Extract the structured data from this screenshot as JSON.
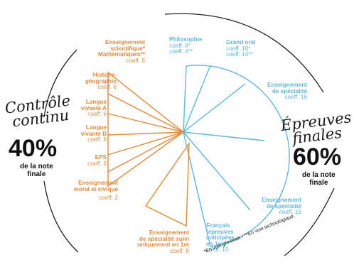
{
  "left": {
    "title_line1": "Contrôle",
    "title_line2": "continu",
    "percent": "40%",
    "note_line1": "de la note",
    "note_line2": "finale"
  },
  "right": {
    "title_line1": "Épreuves",
    "title_line2": "finales",
    "percent": "60%",
    "note_line1": "de la note",
    "note_line2": "finale"
  },
  "segments": {
    "ens_sci": {
      "lines": [
        "Enseignement",
        "scientifique*",
        "Mathématiques**"
      ],
      "coeff": "coeff. 6"
    },
    "histoire": {
      "lines": [
        "Histoire-",
        "géographie"
      ],
      "coeff": "coeff. 6"
    },
    "langue_a": {
      "lines": [
        "Langue",
        "vivante A"
      ],
      "coeff": "coeff. 6"
    },
    "langue_b": {
      "lines": [
        "Langue",
        "vivante B"
      ],
      "coeff": "coeff. 6"
    },
    "eps": {
      "lines": [
        "EPS"
      ],
      "coeff": "coeff. 6"
    },
    "moral": {
      "lines": [
        "Enseignement",
        "moral et civique"
      ],
      "coeff": "coeff. 2"
    },
    "specialite_1re": {
      "lines": [
        "Enseignement",
        "de spécialité suivi",
        "uniquement en 1re"
      ],
      "coeff": "coeff. 8"
    },
    "philo": {
      "lines": [
        "Philosophie",
        "coeff. 8*",
        "coeff. 4**"
      ]
    },
    "grand_oral": {
      "lines": [
        "Grand oral",
        "coeff. 10*",
        "coeff. 14**"
      ]
    },
    "spe_1": {
      "lines": [
        "Enseignement",
        "de spécialité"
      ],
      "coeff": "coeff. 16"
    },
    "spe_2": {
      "lines": [
        "Enseignement",
        "de spécialité"
      ],
      "coeff": "coeff. 16"
    },
    "francais": {
      "lines": [
        "Français",
        "(épreuves",
        "anticipées",
        "en 1re)"
      ],
      "coeff": "coeff. 10"
    }
  },
  "footnote": "*En voie générale / **En voie technologique.",
  "colors": {
    "orange": "#e08a3c",
    "blue": "#5fb7dc",
    "ink": "#1a1a1a"
  }
}
